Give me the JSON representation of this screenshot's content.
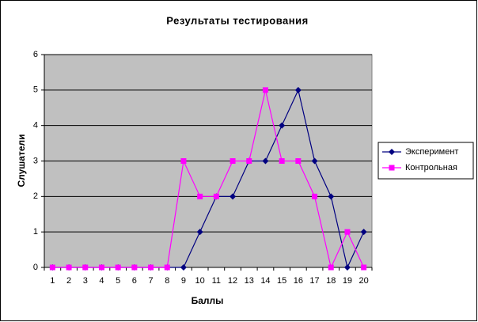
{
  "chart_data": {
    "type": "line",
    "title": "Результаты тестирования",
    "x_label": "Баллы",
    "y_label": "Слушатели",
    "categories": [
      1,
      2,
      3,
      4,
      5,
      6,
      7,
      8,
      9,
      10,
      11,
      12,
      13,
      14,
      15,
      16,
      17,
      18,
      19,
      20
    ],
    "series": [
      {
        "name": "Эксперимент",
        "color": "#000080",
        "marker": "diamond",
        "values": [
          0,
          0,
          0,
          0,
          0,
          0,
          0,
          0,
          0,
          1,
          2,
          2,
          3,
          3,
          4,
          5,
          3,
          2,
          0,
          1
        ]
      },
      {
        "name": "Контрольная",
        "color": "#ff00ff",
        "marker": "square",
        "values": [
          0,
          0,
          0,
          0,
          0,
          0,
          0,
          0,
          3,
          2,
          2,
          3,
          3,
          5,
          3,
          3,
          2,
          0,
          1,
          0
        ]
      }
    ],
    "ylim": [
      0,
      6
    ],
    "yticks": [
      0,
      1,
      2,
      3,
      4,
      5,
      6
    ],
    "grid": true,
    "legend": "right",
    "plot_background": "#c0c0c0"
  }
}
